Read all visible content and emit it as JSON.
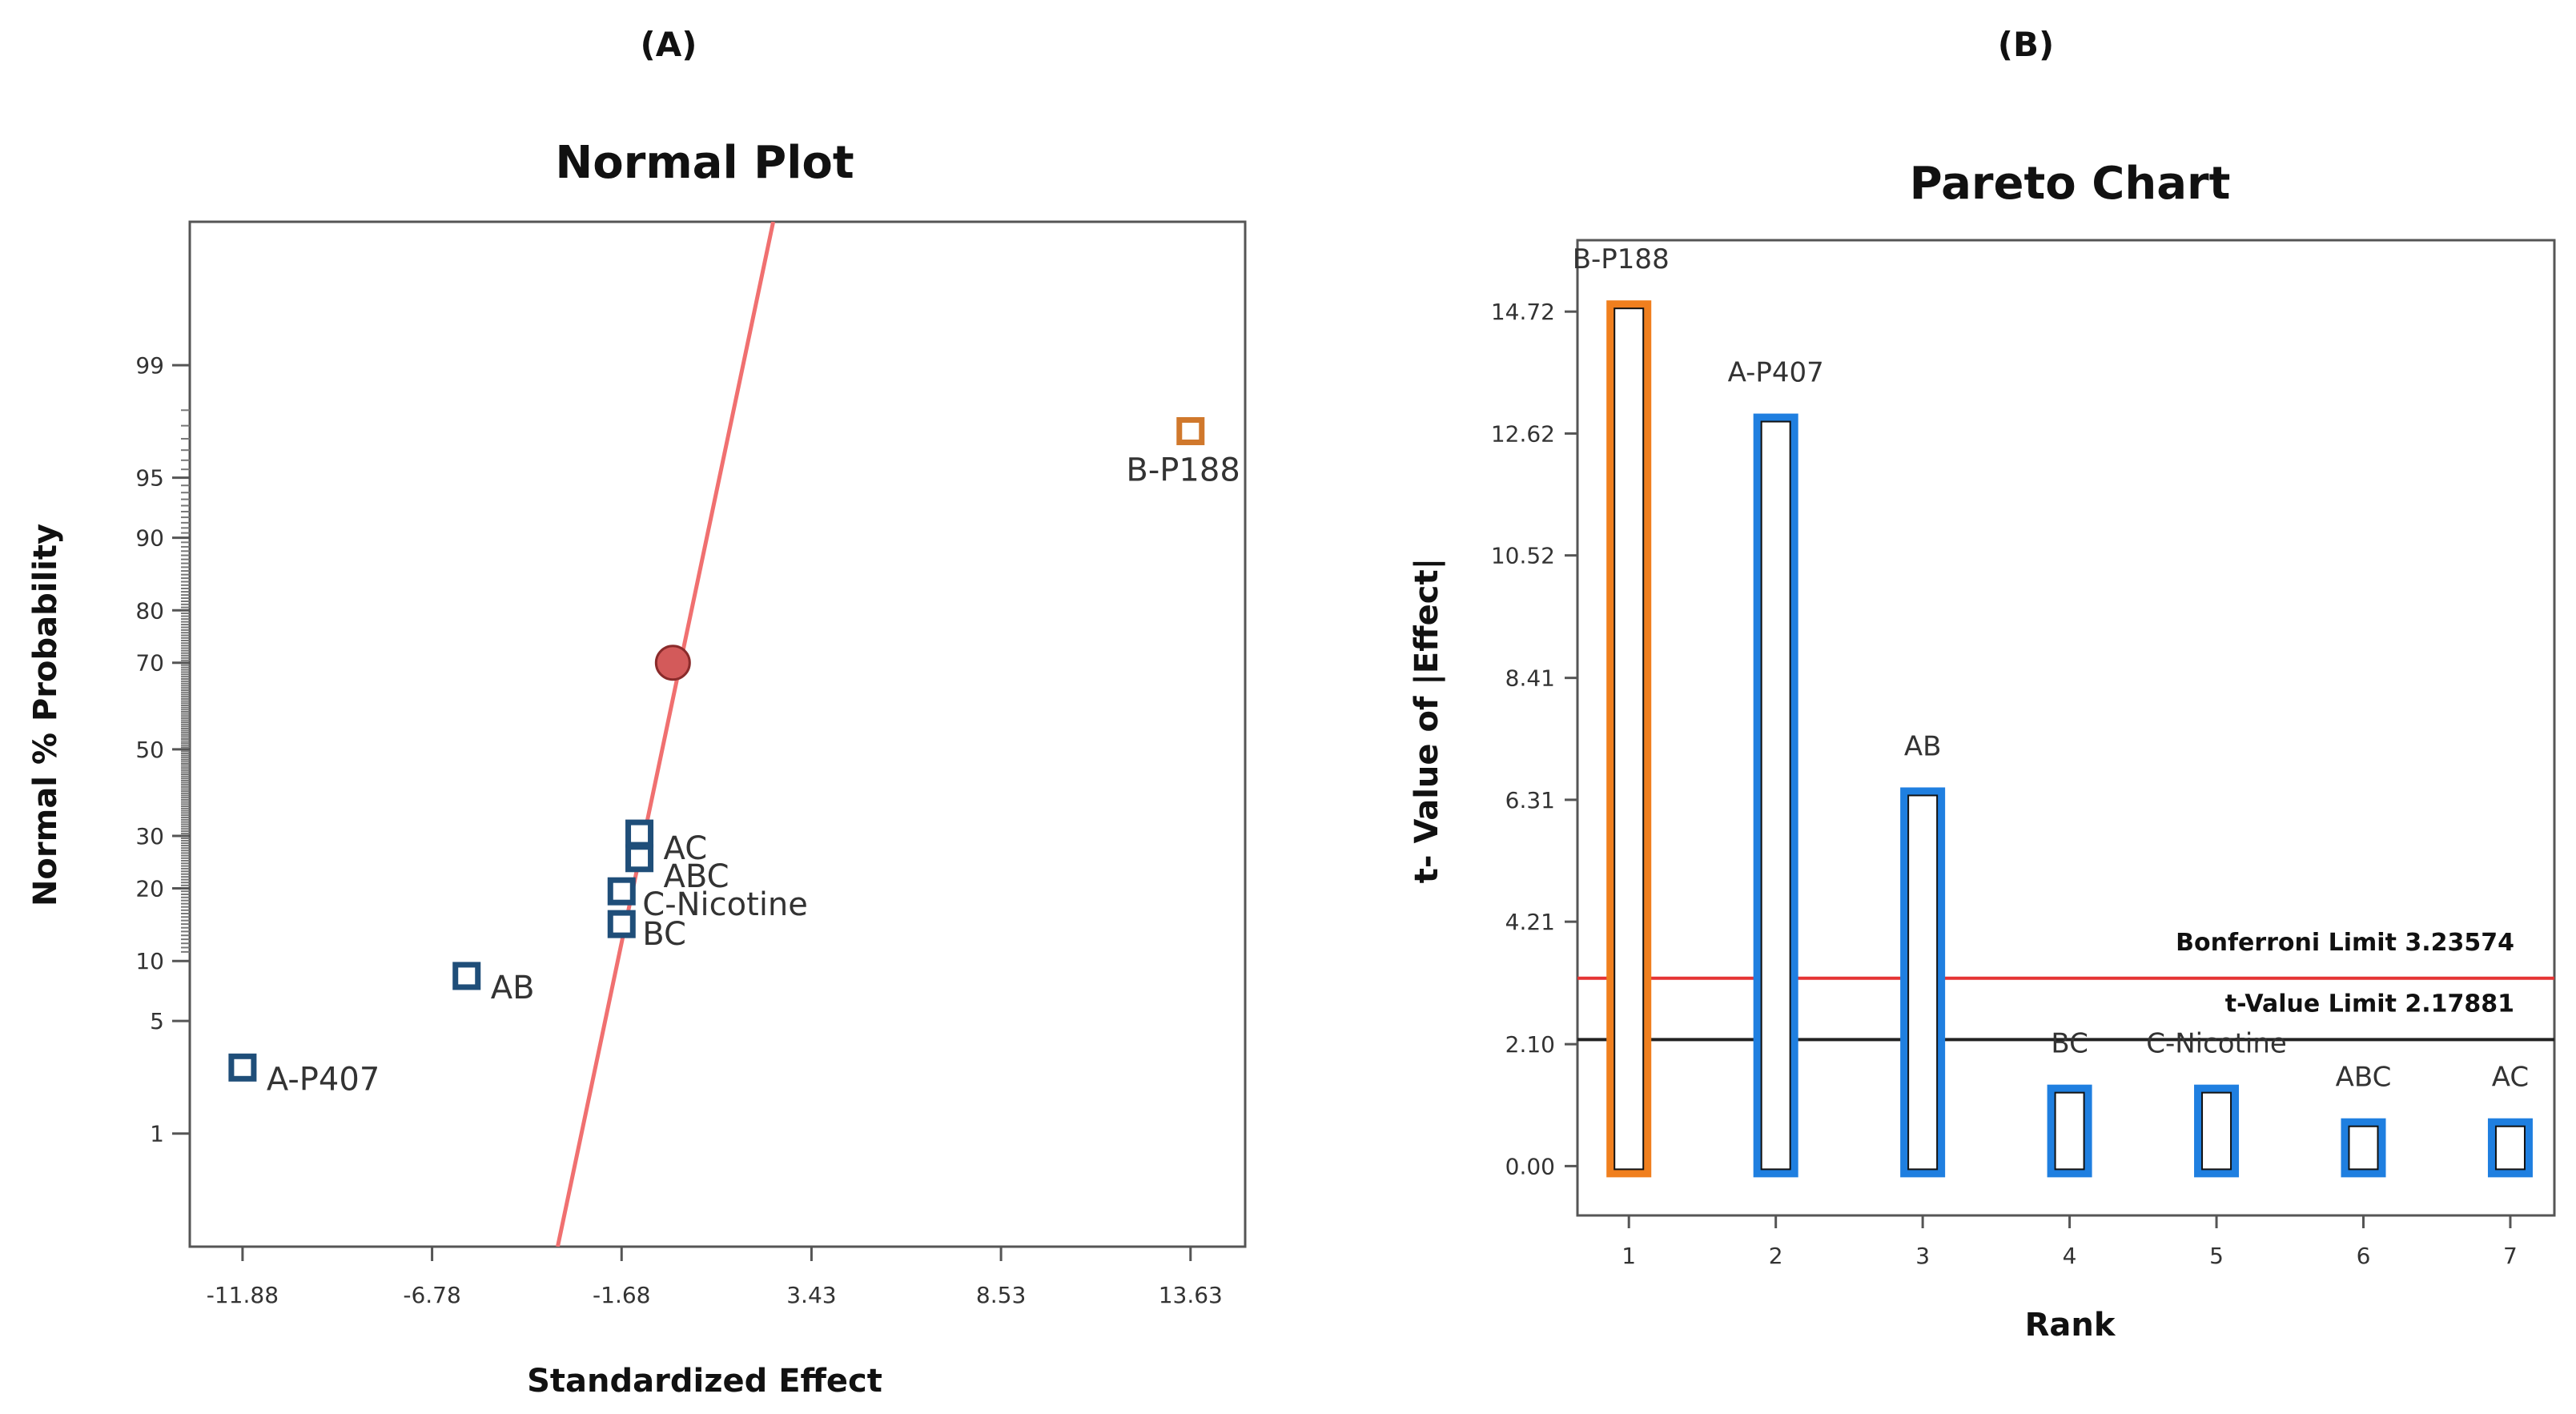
{
  "panels": {
    "a_label": "(A)",
    "b_label": "(B)"
  },
  "chart_data": [
    {
      "type": "scatter",
      "title": "Normal Plot",
      "xlabel": "Standardized  Effect",
      "ylabel": "Normal % Probability",
      "xticks": [
        "-11.88",
        "-6.78",
        "-1.68",
        "3.43",
        "8.53",
        "13.63"
      ],
      "xtick_values": [
        -11.88,
        -6.78,
        -1.68,
        3.43,
        8.53,
        13.63
      ],
      "xlim": [
        -13.3,
        15.1
      ],
      "yticks": [
        "1",
        "5",
        "10",
        "20",
        "30",
        "50",
        "70",
        "80",
        "90",
        "95",
        "99"
      ],
      "ytick_values": [
        1,
        5,
        10,
        20,
        30,
        50,
        70,
        80,
        90,
        95,
        99
      ],
      "ylim": [
        0.13,
        99.93
      ],
      "points": [
        {
          "name": "A-P407",
          "x": -11.88,
          "y": 2.7,
          "color": "#1f4e79"
        },
        {
          "name": "AB",
          "x": -5.85,
          "y": 8.5,
          "color": "#1f4e79"
        },
        {
          "name": "BC",
          "x": -1.68,
          "y": 14.5,
          "color": "#1f4e79"
        },
        {
          "name": "C-Nicotine",
          "x": -1.68,
          "y": 19.5,
          "color": "#1f4e79"
        },
        {
          "name": "ABC",
          "x": -1.2,
          "y": 25.5,
          "color": "#1f4e79"
        },
        {
          "name": "AC",
          "x": -1.2,
          "y": 30.5,
          "color": "#1f4e79"
        },
        {
          "name": "B-P188",
          "x": 13.63,
          "y": 97.3,
          "color": "#d0782c"
        }
      ],
      "normal_line": {
        "x1": -3.4,
        "y1": 0.13,
        "x2": 2.4,
        "y2": 99.93,
        "color": "#f07070"
      },
      "center_point": {
        "x": -0.3,
        "y": 70,
        "color": "#d35a5a"
      }
    },
    {
      "type": "bar",
      "title": "Pareto Chart",
      "xlabel": "Rank",
      "ylabel": "t- Value of |Effect|",
      "categories": [
        "1",
        "2",
        "3",
        "4",
        "5",
        "6",
        "7"
      ],
      "bar_labels": [
        "B-P188",
        "A-P407",
        "AB",
        "BC",
        "C-Nicotine",
        "ABC",
        "AC"
      ],
      "values": [
        14.72,
        12.77,
        6.33,
        1.21,
        1.21,
        0.63,
        0.63
      ],
      "bar_colors": [
        "#f07f1e",
        "#1f7fe0",
        "#1f7fe0",
        "#1f7fe0",
        "#1f7fe0",
        "#1f7fe0",
        "#1f7fe0"
      ],
      "yticks": [
        "0.00",
        "2.10",
        "4.21",
        "6.31",
        "8.41",
        "10.52",
        "12.62",
        "14.72"
      ],
      "ytick_values": [
        0.0,
        2.1,
        4.21,
        6.31,
        8.41,
        10.52,
        12.62,
        14.72
      ],
      "ylim": [
        -0.85,
        15.95
      ],
      "xlim": [
        0.65,
        7.3
      ],
      "limits": [
        {
          "label": "Bonferroni Limit 3.23574",
          "value": 3.23574,
          "color": "#e53333"
        },
        {
          "label": "t-Value Limit 2.17881",
          "value": 2.17881,
          "color": "#222222"
        }
      ]
    }
  ]
}
